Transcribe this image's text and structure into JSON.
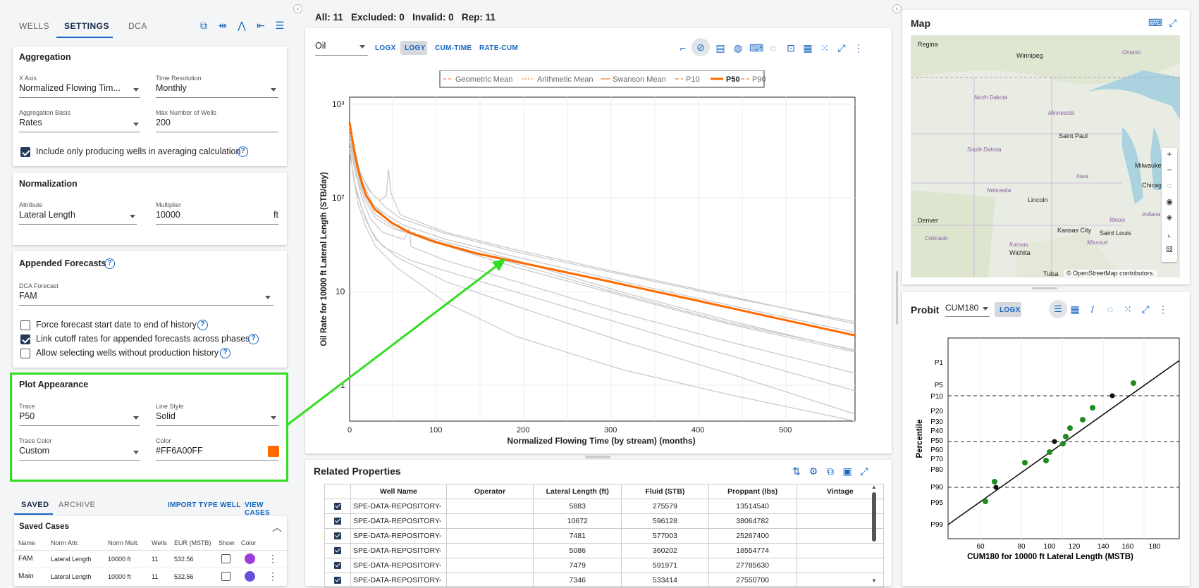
{
  "left_tabs": [
    "WELLS",
    "SETTINGS",
    "DCA"
  ],
  "aggregation": {
    "title": "Aggregation",
    "x_axis": {
      "label": "X Axis",
      "value": "Normalized Flowing Tim..."
    },
    "time_resolution": {
      "label": "Time Resolution",
      "value": "Monthly"
    },
    "aggregation_basis": {
      "label": "Aggregation Basis",
      "value": "Rates"
    },
    "max_wells": {
      "label": "Max Number of Wells",
      "value": "200"
    },
    "include_producing": "Include only producing wells in averaging calculation"
  },
  "normalization": {
    "title": "Normalization",
    "attribute": {
      "label": "Attribute",
      "value": "Lateral Length"
    },
    "multiplier": {
      "label": "Multiplier",
      "value": "10000",
      "unit": "ft"
    }
  },
  "appended": {
    "title": "Appended Forecasts",
    "dca_forecast": {
      "label": "DCA Forecast",
      "value": "FAM"
    },
    "force": "Force forecast start date to end of history",
    "link": "Link cutoff rates for appended forecasts across phases",
    "allow": "Allow selecting wells without production history"
  },
  "plot_appearance": {
    "title": "Plot Appearance",
    "trace": {
      "label": "Trace",
      "value": "P50"
    },
    "line_style": {
      "label": "Line Style",
      "value": "Solid"
    },
    "trace_color": {
      "label": "Trace Color",
      "value": "Custom"
    },
    "color": {
      "label": "Color",
      "value": "#FF6A00FF"
    },
    "accent": "#ff6a00",
    "highlight": "#33dd22"
  },
  "saved": {
    "tabs": [
      "SAVED",
      "ARCHIVE"
    ],
    "import_label": "IMPORT TYPE WELL",
    "view_label": "VIEW CASES",
    "title": "Saved Cases",
    "headers": [
      "Name",
      "Norm Attr.",
      "Norm Mult.",
      "Wells",
      "EUR (MSTB)",
      "Show",
      "Color"
    ],
    "rows": [
      {
        "name": "FAM",
        "attr": "Lateral Length",
        "mult": "10000 ft",
        "wells": "11",
        "eur": "532.56",
        "color": "#9b3ddb"
      },
      {
        "name": "Main",
        "attr": "Lateral Length",
        "mult": "10000 ft",
        "wells": "11",
        "eur": "532.56",
        "color": "#6a4fd8"
      }
    ]
  },
  "summary": {
    "all": "All: 11",
    "excluded": "Excluded: 0",
    "invalid": "Invalid: 0",
    "rep": "Rep: 11"
  },
  "main_toolbar": {
    "phase": "Oil",
    "buttons": [
      "LOGX",
      "LOGY",
      "CUM-TIME",
      "RATE-CUM"
    ]
  },
  "chart_data": {
    "type": "line",
    "ylabel": "Oil Rate for 10000 ft Lateral Length (STB/day)",
    "xlabel": "Normalized Flowing Time (by stream) (months)",
    "x_ticks": [
      "0",
      "100",
      "200",
      "300",
      "400",
      "500"
    ],
    "y_ticks": [
      "10³",
      "10²",
      "10",
      "1"
    ],
    "xlim": [
      0,
      600
    ],
    "ylim": [
      0.3,
      1100
    ],
    "y_scale": "log",
    "legend": [
      "Geometric Mean",
      "Arithmetic Mean",
      "Swanson Mean",
      "P10",
      "P50",
      "P90"
    ],
    "series": [
      {
        "name": "P50",
        "x": [
          0,
          3,
          6,
          10,
          15,
          20,
          30,
          50,
          70,
          100,
          150,
          200,
          300,
          400,
          500,
          597
        ],
        "y": [
          640,
          430,
          300,
          200,
          140,
          105,
          75,
          54,
          43,
          34,
          25.5,
          20.5,
          13.2,
          8.4,
          5.3,
          3.4
        ]
      }
    ]
  },
  "related": {
    "title": "Related Properties",
    "headers": [
      "Well Name",
      "Operator",
      "Lateral Length (ft)",
      "Fluid (STB)",
      "Proppant (lbs)",
      "Vintage"
    ],
    "rows": [
      [
        "SPE-DATA-REPOSITORY-",
        "",
        "5883",
        "275579",
        "13514540",
        ""
      ],
      [
        "SPE-DATA-REPOSITORY-",
        "",
        "10672",
        "596128",
        "38064782",
        ""
      ],
      [
        "SPE-DATA-REPOSITORY-",
        "",
        "7481",
        "577003",
        "25267400",
        ""
      ],
      [
        "SPE-DATA-REPOSITORY-",
        "",
        "5086",
        "360202",
        "18554774",
        ""
      ],
      [
        "SPE-DATA-REPOSITORY-",
        "",
        "7479",
        "591971",
        "27785630",
        ""
      ],
      [
        "SPE-DATA-REPOSITORY-",
        "",
        "7346",
        "533414",
        "27550700",
        ""
      ]
    ]
  },
  "map": {
    "title": "Map",
    "attribution": "© OpenStreetMap contributors.",
    "labels": [
      "Regina",
      "Winnipeg",
      "Ontario",
      "North Dakota",
      "Minnesota",
      "Saint Paul",
      "South Dakota",
      "Milwaukee",
      "Iowa",
      "Chicago",
      "Nebraska",
      "Lincoln",
      "Denver",
      "Kansas City",
      "Illinois",
      "Indiana",
      "Colorado",
      "Kansas",
      "Missouri",
      "Saint Louis",
      "Wichita",
      "Tulsa"
    ]
  },
  "probit": {
    "title": "Probit",
    "select": "CUM180",
    "logx": "LOGX",
    "ylabel": "Percentile",
    "xlabel": "CUM180 for 10000 ft Lateral Length (MSTB)",
    "y_ticks": [
      "P1",
      "P5",
      "P10",
      "P20",
      "P30",
      "P40",
      "P50",
      "P60",
      "P70",
      "P80",
      "P90",
      "P95",
      "P99"
    ],
    "x_ticks": [
      "60",
      "80",
      "100",
      "120",
      "140",
      "160",
      "180"
    ]
  }
}
